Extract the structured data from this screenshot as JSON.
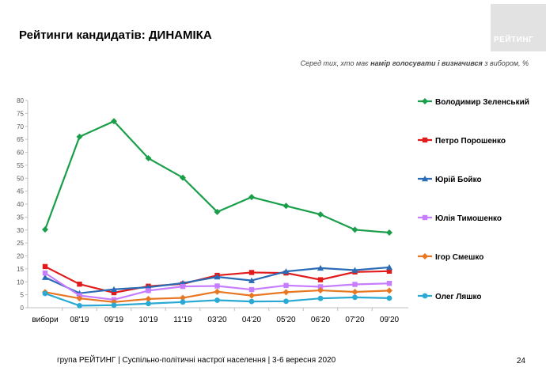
{
  "title": "Рейтинги кандидатів: ДИНАМІКА",
  "logo_text": "РЕЙТИНГ",
  "subtitle": {
    "prefix": "Серед тих, хто має ",
    "bold": "намір голосувати і визначився",
    "suffix": " з вибором, %"
  },
  "footer": "група РЕЙТИНГ |  Суспільно-політичні настрої населення  | 3-6 вересня  2020",
  "page_number": "24",
  "chart_data": {
    "type": "line",
    "categories": [
      "вибори",
      "08'19",
      "09'19",
      "10'19",
      "11'19",
      "03'20",
      "04'20",
      "05'20",
      "06'20",
      "07'20",
      "09'20"
    ],
    "ylim": [
      0,
      80
    ],
    "yticks": [
      0,
      5,
      10,
      15,
      20,
      25,
      30,
      35,
      40,
      45,
      50,
      55,
      60,
      65,
      70,
      75,
      80
    ],
    "grid": false,
    "legend_position": "right",
    "series": [
      {
        "name": "Володимир Зеленський",
        "color": "#1a9e4a",
        "marker": "diamond",
        "values": [
          30.2,
          66,
          72,
          57.7,
          50.2,
          37,
          42.7,
          39.3,
          36,
          30.1,
          29
        ]
      },
      {
        "name": "Петро Порошенко",
        "color": "#e11b1b",
        "marker": "square",
        "values": [
          15.9,
          9.1,
          5.8,
          8.3,
          9.2,
          12.5,
          13.6,
          13.4,
          10.8,
          13.8,
          14.1
        ]
      },
      {
        "name": "Юрій Бойко",
        "color": "#2a6bb5",
        "marker": "triangle",
        "values": [
          11.7,
          5.6,
          7.1,
          7.9,
          9.5,
          11.9,
          10.5,
          14,
          15.3,
          14.5,
          15.6
        ]
      },
      {
        "name": "Юлія Тимошенко",
        "color": "#c77dff",
        "marker": "square",
        "values": [
          13.4,
          4.7,
          3.1,
          6.6,
          8.2,
          8.4,
          7,
          8.6,
          8.1,
          9,
          9.4
        ]
      },
      {
        "name": "Ігор Смешко",
        "color": "#e87722",
        "marker": "diamond",
        "values": [
          6,
          3.6,
          2.2,
          3.4,
          3.8,
          6.2,
          4.7,
          6,
          6.7,
          6.1,
          6.6
        ]
      },
      {
        "name": "Олег Ляшко",
        "color": "#29a9d4",
        "marker": "circle",
        "values": [
          5.5,
          0.8,
          1,
          1.6,
          2.2,
          2.9,
          2.4,
          2.5,
          3.6,
          4,
          3.7
        ]
      }
    ]
  }
}
